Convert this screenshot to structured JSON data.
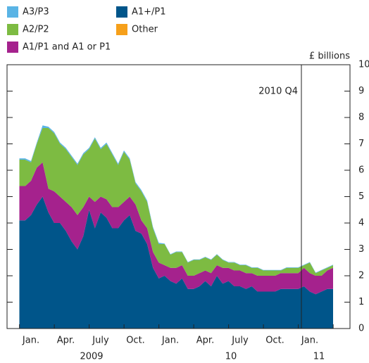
{
  "chart_data": {
    "type": "stacked_area",
    "y_axis_label": "£ billions",
    "annotation": "2010 Q4",
    "categories": [
      null,
      null,
      "Jan.",
      null,
      null,
      null,
      null,
      null,
      "Apr.",
      null,
      null,
      null,
      null,
      null,
      "July",
      null,
      null,
      null,
      null,
      null,
      "Oct.",
      null,
      null,
      null,
      null,
      null,
      "Jan.",
      null,
      null,
      null,
      null,
      null,
      "Apr.",
      null,
      null,
      null,
      null,
      null,
      "July",
      null,
      null,
      null,
      null,
      null,
      "Oct.",
      null,
      null,
      null,
      null,
      null,
      "Jan.",
      null,
      null,
      null,
      null
    ],
    "x_group_labels": [
      "2009",
      "10",
      "11"
    ],
    "series": [
      {
        "name": "A1+/P1",
        "color": "#00558a",
        "values": [
          4.1,
          4.1,
          4.3,
          4.7,
          5.0,
          4.4,
          4.0,
          4.0,
          3.7,
          3.3,
          3.0,
          3.5,
          4.5,
          3.8,
          4.4,
          4.2,
          3.8,
          3.8,
          4.1,
          4.3,
          3.7,
          3.6,
          3.2,
          2.3,
          1.9,
          2.0,
          1.8,
          1.7,
          1.9,
          1.5,
          1.5,
          1.6,
          1.8,
          1.6,
          2.0,
          1.7,
          1.8,
          1.6,
          1.6,
          1.5,
          1.6,
          1.4,
          1.4,
          1.4,
          1.4,
          1.5,
          1.5,
          1.5,
          1.5,
          1.6,
          1.4,
          1.3,
          1.4,
          1.5,
          1.5
        ]
      },
      {
        "name": "A1/P1 and A1 or P1",
        "color": "#a5228d",
        "values": [
          1.3,
          1.3,
          1.3,
          1.4,
          1.3,
          0.9,
          1.2,
          1.0,
          1.1,
          1.3,
          1.3,
          1.1,
          0.5,
          1.0,
          0.6,
          0.7,
          0.8,
          0.8,
          0.7,
          0.7,
          1.0,
          0.5,
          0.6,
          0.6,
          0.6,
          0.4,
          0.5,
          0.6,
          0.5,
          0.5,
          0.5,
          0.5,
          0.4,
          0.5,
          0.4,
          0.6,
          0.5,
          0.6,
          0.6,
          0.6,
          0.5,
          0.6,
          0.6,
          0.6,
          0.6,
          0.6,
          0.6,
          0.6,
          0.6,
          0.7,
          0.7,
          0.7,
          0.6,
          0.7,
          0.8
        ]
      },
      {
        "name": "A2/P2",
        "color": "#7dbb42",
        "values": [
          1.0,
          1.0,
          0.7,
          0.9,
          1.3,
          2.3,
          2.2,
          2.0,
          2.0,
          1.9,
          1.9,
          2.0,
          1.8,
          2.4,
          1.8,
          2.1,
          2.0,
          1.6,
          1.9,
          1.4,
          0.8,
          1.1,
          1.0,
          0.9,
          0.7,
          0.8,
          0.5,
          0.6,
          0.5,
          0.5,
          0.6,
          0.5,
          0.5,
          0.5,
          0.4,
          0.3,
          0.2,
          0.3,
          0.2,
          0.3,
          0.2,
          0.3,
          0.2,
          0.2,
          0.2,
          0.1,
          0.2,
          0.2,
          0.2,
          0.1,
          0.4,
          0.1,
          0.2,
          0.1,
          0.1
        ]
      },
      {
        "name": "A3/P3",
        "color": "#5ab4e5",
        "values": [
          0.05,
          0.05,
          0.05,
          0.05,
          0.1,
          0.05,
          0.05,
          0.05,
          0.05,
          0.05,
          0.05,
          0.05,
          0.05,
          0.05,
          0.05,
          0.05,
          0.05,
          0.05,
          0.05,
          0.05,
          0.05,
          0.05,
          0.05,
          0.05,
          0.05,
          0.02,
          0.02,
          0.02,
          0.02,
          0.02,
          0.02,
          0.02,
          0.02,
          0.02,
          0.02,
          0.02,
          0.02,
          0.02,
          0.02,
          0.02,
          0.02,
          0.02,
          0.02,
          0.02,
          0.02,
          0.02,
          0.02,
          0.02,
          0.02,
          0.02,
          0.02,
          0.02,
          0.02,
          0.02,
          0.02
        ]
      },
      {
        "name": "Other",
        "color": "#f6a01a",
        "values": [
          0,
          0,
          0,
          0,
          0,
          0,
          0,
          0,
          0,
          0,
          0,
          0,
          0,
          0,
          0,
          0,
          0,
          0,
          0,
          0,
          0,
          0,
          0,
          0,
          0,
          0,
          0,
          0,
          0,
          0,
          0,
          0,
          0,
          0,
          0,
          0,
          0,
          0,
          0,
          0,
          0,
          0,
          0,
          0,
          0,
          0,
          0,
          0,
          0,
          0,
          0,
          0,
          0,
          0,
          0
        ]
      }
    ],
    "ylim": [
      0,
      10
    ],
    "yticks": [
      0,
      1,
      2,
      3,
      4,
      5,
      6,
      7,
      8,
      9,
      10
    ],
    "y_axis_side": "right",
    "legend": "top-left"
  }
}
